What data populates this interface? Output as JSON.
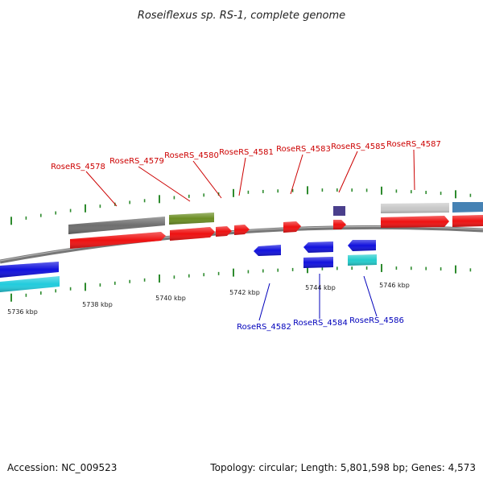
{
  "title": "Roseiflexus sp. RS-1, complete genome",
  "footer": {
    "accession": "Accession: NC_009523",
    "summary": "Topology: circular; Length: 5,801,598 bp; Genes: 4,573"
  },
  "colors": {
    "forward_label": "#cc0000",
    "reverse_label": "#0000bb",
    "backbone": "#777777",
    "tick": "#2e8b2e",
    "gene_red": "#ee1111",
    "gene_blue": "#1111dd",
    "gene_cyan": "#22ccdd",
    "gene_gray": "#6e6e6e",
    "gene_olive": "#6b8e23",
    "gene_light_gray": "#c8c8c8",
    "gene_steel": "#4682b4",
    "gene_slate": "#4a3f8c",
    "gene_teal": "#22cccc"
  },
  "scale_labels": [
    "5736 kbp",
    "5738 kbp",
    "5740 kbp",
    "5742 kbp",
    "5744 kbp",
    "5746 kbp"
  ],
  "forward_gene_labels": [
    "RoseRS_4578",
    "RoseRS_4579",
    "RoseRS_4580",
    "RoseRS_4581",
    "RoseRS_4583",
    "RoseRS_4585",
    "RoseRS_4587"
  ],
  "reverse_gene_labels": [
    "RoseRS_4582",
    "RoseRS_4584",
    "RoseRS_4586"
  ]
}
